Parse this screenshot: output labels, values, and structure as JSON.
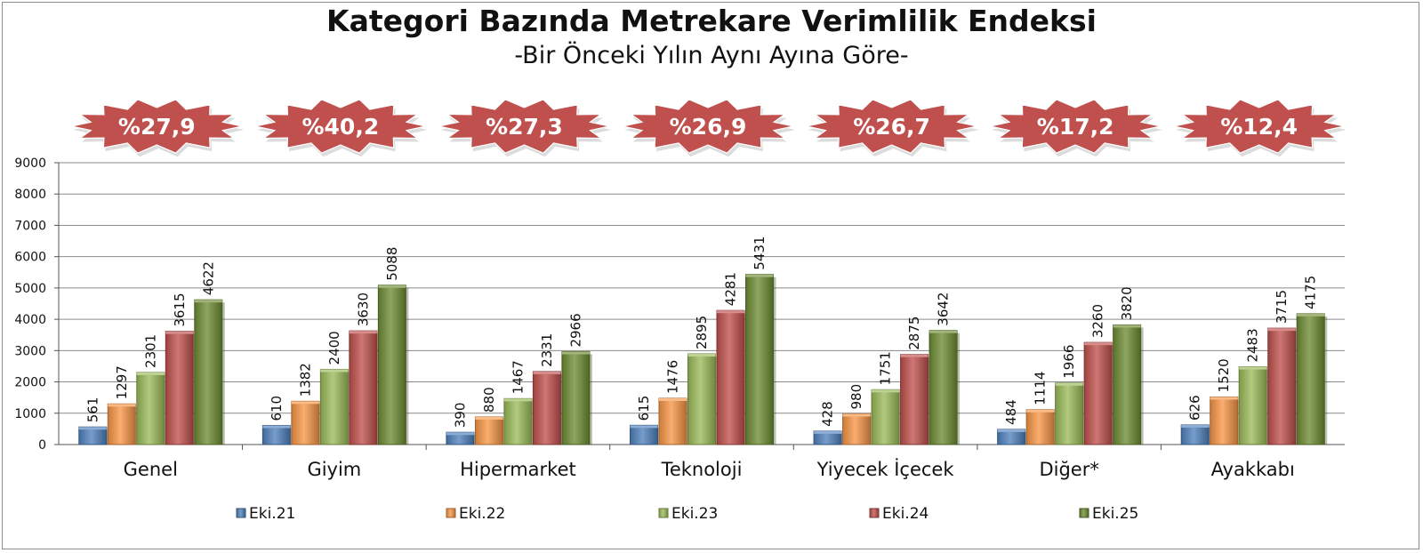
{
  "chart_data": {
    "type": "bar",
    "title": "Kategori Bazında Metrekare Verimlilik Endeksi",
    "subtitle": "-Bir Önceki Yılın Aynı Ayına Göre-",
    "categories": [
      "Genel",
      "Giyim",
      "Hipermarket",
      "Teknoloji",
      "Yiyecek İçecek",
      "Diğer*",
      "Ayakkabı"
    ],
    "series": [
      {
        "name": "Eki.21",
        "color": "#4f81bd",
        "values": [
          561,
          610,
          390,
          615,
          428,
          484,
          626
        ]
      },
      {
        "name": "Eki.22",
        "color": "#f79646",
        "values": [
          1297,
          1382,
          880,
          1476,
          980,
          1114,
          1520
        ]
      },
      {
        "name": "Eki.23",
        "color": "#9bbb59",
        "values": [
          2301,
          2400,
          1467,
          2895,
          1751,
          1966,
          2483
        ]
      },
      {
        "name": "Eki.24",
        "color": "#c0504d",
        "values": [
          3615,
          3630,
          2331,
          4281,
          2875,
          3260,
          3715
        ]
      },
      {
        "name": "Eki.25",
        "color": "#6e8c33",
        "values": [
          4622,
          5088,
          2966,
          5431,
          3642,
          3820,
          4175
        ]
      }
    ],
    "badges": [
      "%27,9",
      "%40,2",
      "%27,3",
      "%26,9",
      "%26,7",
      "%17,2",
      "%12,4"
    ],
    "badge_color": "#c0504d",
    "ylim": [
      0,
      9000
    ],
    "yticks": [
      0,
      1000,
      2000,
      3000,
      4000,
      5000,
      6000,
      7000,
      8000,
      9000
    ],
    "grid": true,
    "legend_position": "bottom",
    "xlabel": "",
    "ylabel": ""
  }
}
